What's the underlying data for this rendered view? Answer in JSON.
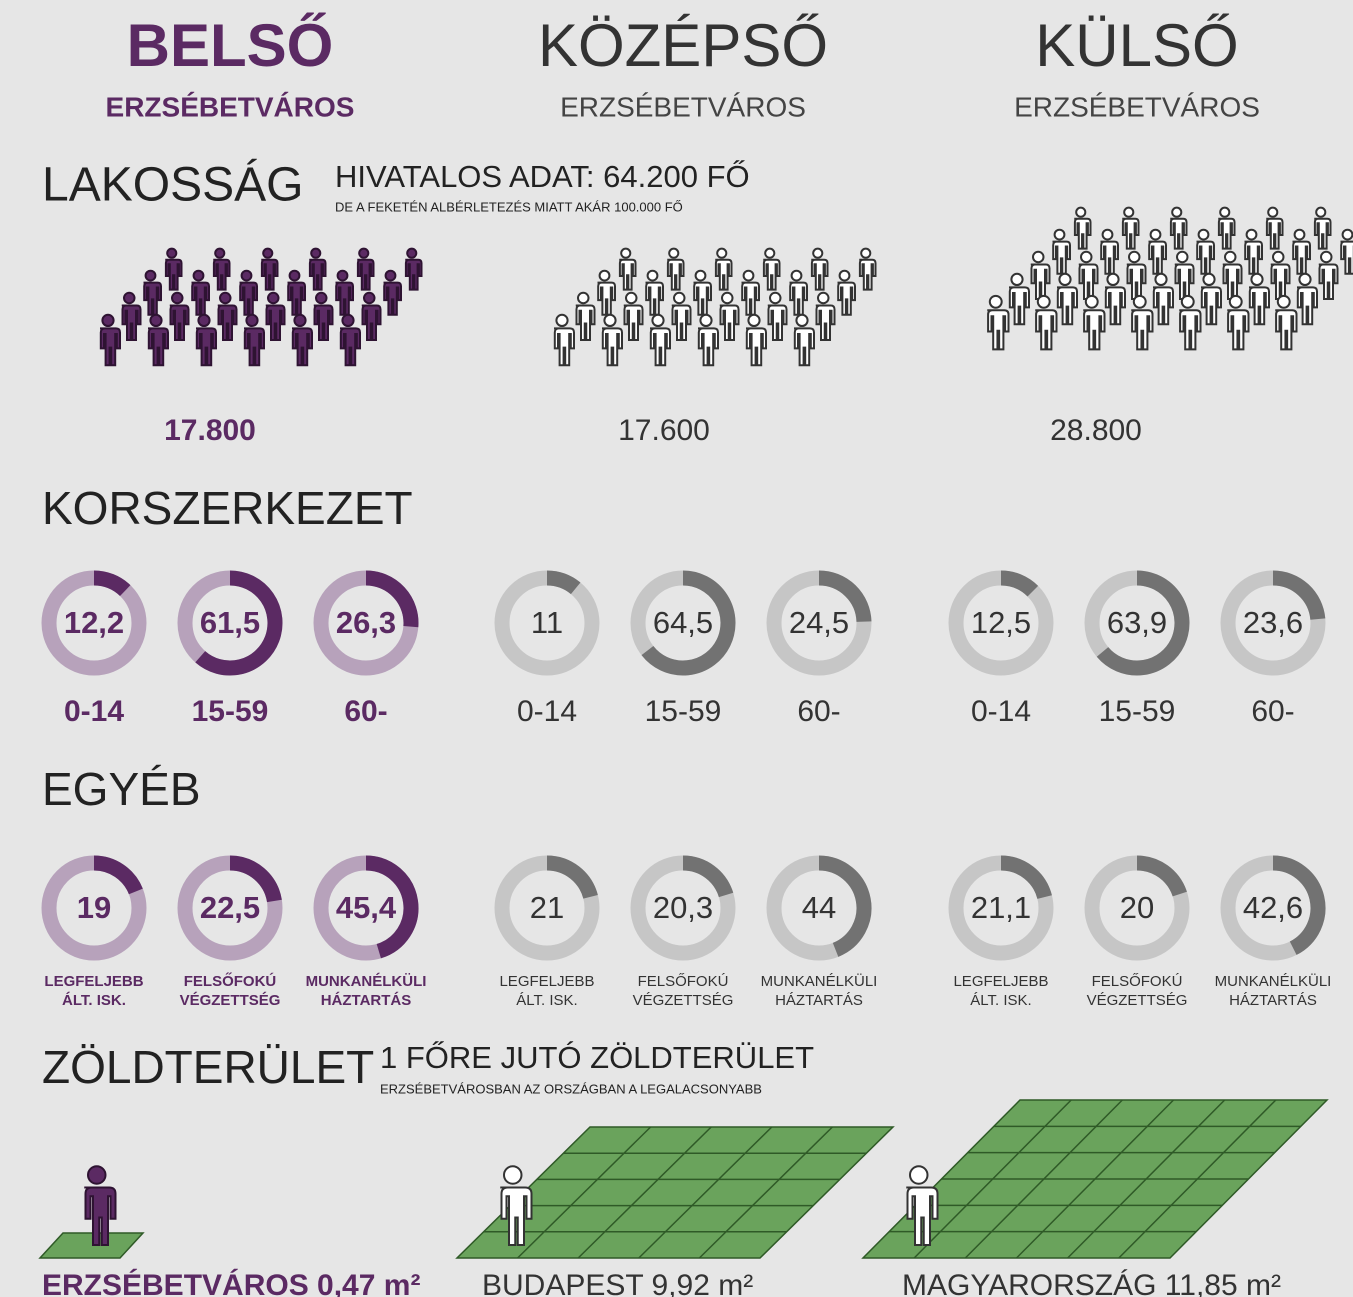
{
  "columns": [
    {
      "title": "BELSŐ",
      "subtitle": "ERZSÉBETVÁROS",
      "population": "17.800",
      "age": {
        "values": [
          12.2,
          61.5,
          26.3
        ],
        "value_labels": [
          "12,2",
          "61,5",
          "26,3"
        ],
        "labels": [
          "0-14",
          "15-59",
          "60-"
        ]
      },
      "other": {
        "values": [
          19,
          22.5,
          45.4
        ],
        "value_labels": [
          "19",
          "22,5",
          "45,4"
        ],
        "labels": [
          [
            "LEGFELJEBB",
            "ÁLT. ISK."
          ],
          [
            "FELSŐFOKÚ",
            "VÉGZETTSÉG"
          ],
          [
            "MUNKANÉLKÜLI",
            "HÁZTARTÁS"
          ]
        ]
      },
      "green": "ERZSÉBETVÁROS 0,47 m²"
    },
    {
      "title": "KÖZÉPSŐ",
      "subtitle": "ERZSÉBETVÁROS",
      "population": "17.600",
      "age": {
        "values": [
          11,
          64.5,
          24.5
        ],
        "value_labels": [
          "11",
          "64,5",
          "24,5"
        ],
        "labels": [
          "0-14",
          "15-59",
          "60-"
        ]
      },
      "other": {
        "values": [
          21,
          20.3,
          44
        ],
        "value_labels": [
          "21",
          "20,3",
          "44"
        ],
        "labels": [
          [
            "LEGFELJEBB",
            "ÁLT. ISK."
          ],
          [
            "FELSŐFOKÚ",
            "VÉGZETTSÉG"
          ],
          [
            "MUNKANÉLKÜLI",
            "HÁZTARTÁS"
          ]
        ]
      },
      "green": "BUDAPEST 9,92 m²"
    },
    {
      "title": "KÜLSŐ",
      "subtitle": "ERZSÉBETVÁROS",
      "population": "28.800",
      "age": {
        "values": [
          12.5,
          63.9,
          23.6
        ],
        "value_labels": [
          "12,5",
          "63,9",
          "23,6"
        ],
        "labels": [
          "0-14",
          "15-59",
          "60-"
        ]
      },
      "other": {
        "values": [
          21.1,
          20,
          42.6
        ],
        "value_labels": [
          "21,1",
          "20",
          "42,6"
        ],
        "labels": [
          [
            "LEGFELJEBB",
            "ÁLT. ISK."
          ],
          [
            "FELSŐFOKÚ",
            "VÉGZETTSÉG"
          ],
          [
            "MUNKANÉLKÜLI",
            "HÁZTARTÁS"
          ]
        ]
      },
      "green": "MAGYARORSZÁG 11,85 m²"
    }
  ],
  "sections": {
    "population": {
      "heading": "LAKOSSÁG",
      "note": "HIVATALOS ADAT: 64.200 FŐ",
      "subnote": "DE A FEKETÉN ALBÉRLETEZÉS MIATT AKÁR 100.000 FŐ"
    },
    "age": {
      "heading": "KORSZERKEZET"
    },
    "other": {
      "heading": "EGYÉB"
    },
    "green": {
      "heading": "ZÖLDTERÜLET",
      "note": "1 FŐRE JUTÓ ZÖLDTERÜLET",
      "subnote": "ERZSÉBETVÁROSBAN AZ ORSZÁGBAN A LEGALACSONYABB"
    }
  }
}
